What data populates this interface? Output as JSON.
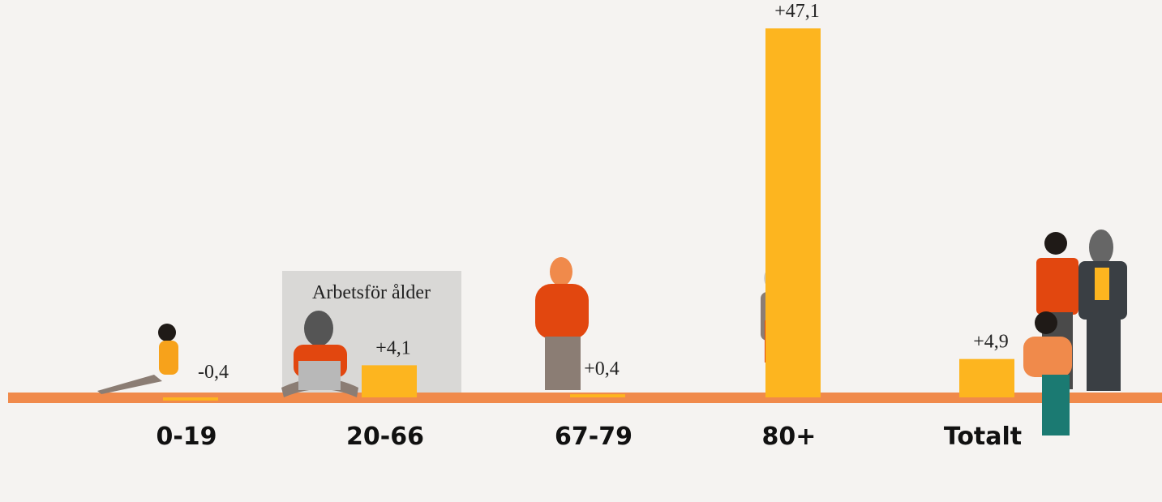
{
  "chart_data": {
    "type": "bar",
    "categories": [
      "0-19",
      "20-66",
      "67-79",
      "80+",
      "Totalt"
    ],
    "values": [
      -0.4,
      4.1,
      0.4,
      47.1,
      4.9
    ],
    "value_labels": [
      "-0,4",
      "+4,1",
      "+0,4",
      "+47,1",
      "+4,9"
    ],
    "color": "#fdb51f",
    "annotation": "Arbetsför ålder"
  }
}
